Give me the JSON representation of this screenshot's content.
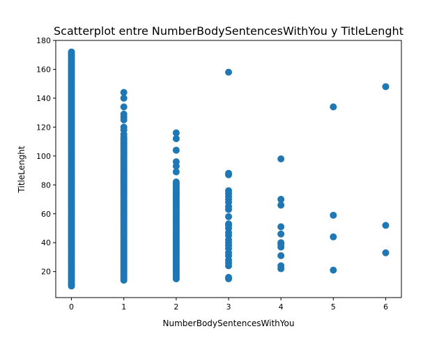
{
  "chart_data": {
    "type": "scatter",
    "title": "Scatterplot entre NumberBodySentencesWithYou y TitleLenght",
    "xlabel": "NumberBodySentencesWithYou",
    "ylabel": "TitleLenght",
    "xlim": [
      -0.3,
      6.3
    ],
    "ylim": [
      2,
      180
    ],
    "xticks": [
      0,
      1,
      2,
      3,
      4,
      5,
      6
    ],
    "yticks": [
      20,
      40,
      60,
      80,
      100,
      120,
      140,
      160,
      180
    ],
    "grid": false,
    "marker_color": "#1f77b4",
    "series": [
      {
        "points": [
          {
            "x": 0,
            "range": [
              10,
              172
            ]
          },
          {
            "x": 1,
            "range": [
              14,
              113
            ]
          },
          {
            "x": 1,
            "y": 115
          },
          {
            "x": 1,
            "y": 118
          },
          {
            "x": 1,
            "y": 120
          },
          {
            "x": 1,
            "y": 125
          },
          {
            "x": 1,
            "y": 127
          },
          {
            "x": 1,
            "y": 129
          },
          {
            "x": 1,
            "y": 134
          },
          {
            "x": 1,
            "y": 140
          },
          {
            "x": 1,
            "y": 144
          },
          {
            "x": 2,
            "range": [
              15,
              82
            ]
          },
          {
            "x": 2,
            "y": 89
          },
          {
            "x": 2,
            "y": 93
          },
          {
            "x": 2,
            "y": 96
          },
          {
            "x": 2,
            "y": 104
          },
          {
            "x": 2,
            "y": 112
          },
          {
            "x": 2,
            "y": 116
          },
          {
            "x": 3,
            "y": 15
          },
          {
            "x": 3,
            "y": 16
          },
          {
            "x": 3,
            "y": 24
          },
          {
            "x": 3,
            "y": 26
          },
          {
            "x": 3,
            "y": 28
          },
          {
            "x": 3,
            "y": 31
          },
          {
            "x": 3,
            "y": 33
          },
          {
            "x": 3,
            "y": 36
          },
          {
            "x": 3,
            "y": 38
          },
          {
            "x": 3,
            "y": 40
          },
          {
            "x": 3,
            "y": 42
          },
          {
            "x": 3,
            "y": 45
          },
          {
            "x": 3,
            "y": 47
          },
          {
            "x": 3,
            "y": 50
          },
          {
            "x": 3,
            "y": 52
          },
          {
            "x": 3,
            "y": 53
          },
          {
            "x": 3,
            "y": 58
          },
          {
            "x": 3,
            "y": 63
          },
          {
            "x": 3,
            "y": 65
          },
          {
            "x": 3,
            "y": 68
          },
          {
            "x": 3,
            "y": 70
          },
          {
            "x": 3,
            "y": 72
          },
          {
            "x": 3,
            "y": 74
          },
          {
            "x": 3,
            "y": 76
          },
          {
            "x": 3,
            "y": 87
          },
          {
            "x": 3,
            "y": 88
          },
          {
            "x": 3,
            "y": 158
          },
          {
            "x": 4,
            "y": 22
          },
          {
            "x": 4,
            "y": 24
          },
          {
            "x": 4,
            "y": 31
          },
          {
            "x": 4,
            "y": 37
          },
          {
            "x": 4,
            "y": 39
          },
          {
            "x": 4,
            "y": 40
          },
          {
            "x": 4,
            "y": 46
          },
          {
            "x": 4,
            "y": 51
          },
          {
            "x": 4,
            "y": 66
          },
          {
            "x": 4,
            "y": 70
          },
          {
            "x": 4,
            "y": 98
          },
          {
            "x": 5,
            "y": 21
          },
          {
            "x": 5,
            "y": 44
          },
          {
            "x": 5,
            "y": 59
          },
          {
            "x": 5,
            "y": 134
          },
          {
            "x": 6,
            "y": 33
          },
          {
            "x": 6,
            "y": 52
          },
          {
            "x": 6,
            "y": 148
          }
        ]
      }
    ]
  }
}
